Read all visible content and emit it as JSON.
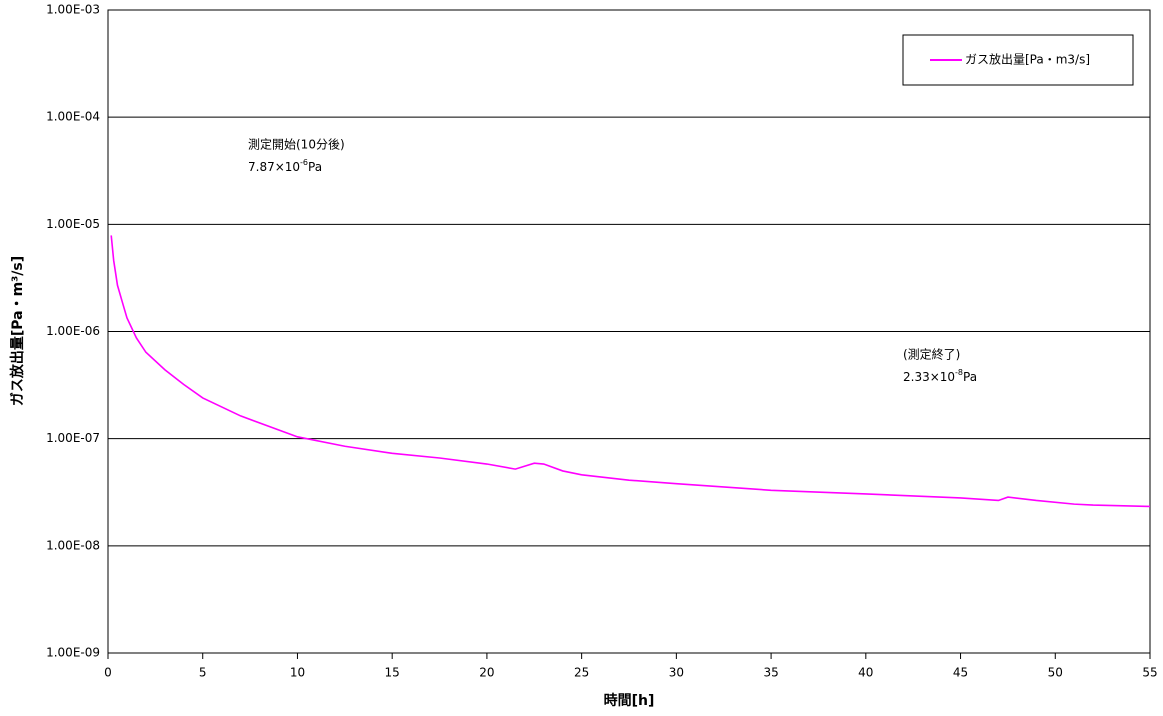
{
  "chart_data": {
    "type": "line",
    "x_label": "時間[h]",
    "y_label": "ガス放出量[Pa・m³/s]",
    "log_y": true,
    "grid": true,
    "legend": "upper right",
    "xlim": [
      0,
      55
    ],
    "xticks": [
      0,
      5,
      10,
      15,
      20,
      25,
      30,
      35,
      40,
      45,
      50,
      55
    ],
    "ylim": [
      1e-09,
      0.001
    ],
    "yticks": [
      {
        "value": 1e-09,
        "label": "1.00E-09"
      },
      {
        "value": 1e-08,
        "label": "1.00E-08"
      },
      {
        "value": 1e-07,
        "label": "1.00E-07"
      },
      {
        "value": 1e-06,
        "label": "1.00E-06"
      },
      {
        "value": 1e-05,
        "label": "1.00E-05"
      },
      {
        "value": 0.0001,
        "label": "1.00E-04"
      },
      {
        "value": 0.001,
        "label": "1.00E-03"
      }
    ],
    "x": [
      0.17,
      0.3,
      0.5,
      0.8,
      1.0,
      1.5,
      2,
      3,
      4,
      5,
      7,
      10,
      12.5,
      15,
      17.5,
      20,
      21.5,
      22.5,
      23,
      24,
      25,
      27.5,
      30,
      35,
      40,
      45,
      47,
      47.5,
      49,
      51,
      52,
      55
    ],
    "series": [
      {
        "name": "ガス放出量[Pa・m3/s]",
        "color": "#ff00ff",
        "values": [
          7.87e-06,
          4.6e-06,
          2.7e-06,
          1.77e-06,
          1.34e-06,
          8.7e-07,
          6.4e-07,
          4.4e-07,
          3.2e-07,
          2.4e-07,
          1.63e-07,
          1.04e-07,
          8.5e-08,
          7.3e-08,
          6.6e-08,
          5.8e-08,
          5.2e-08,
          5.9e-08,
          5.8e-08,
          5e-08,
          4.6e-08,
          4.1e-08,
          3.8e-08,
          3.3e-08,
          3.05e-08,
          2.8e-08,
          2.65e-08,
          2.85e-08,
          2.65e-08,
          2.45e-08,
          2.4e-08,
          2.33e-08
        ]
      }
    ],
    "annotations": [
      {
        "title": "測定開始(10分後)",
        "text": "7.87×10",
        "sup": "-6",
        "unit": "Pa"
      },
      {
        "title": "(測定終了)",
        "text": "2.33×10",
        "sup": "-8",
        "unit": "Pa"
      }
    ]
  }
}
